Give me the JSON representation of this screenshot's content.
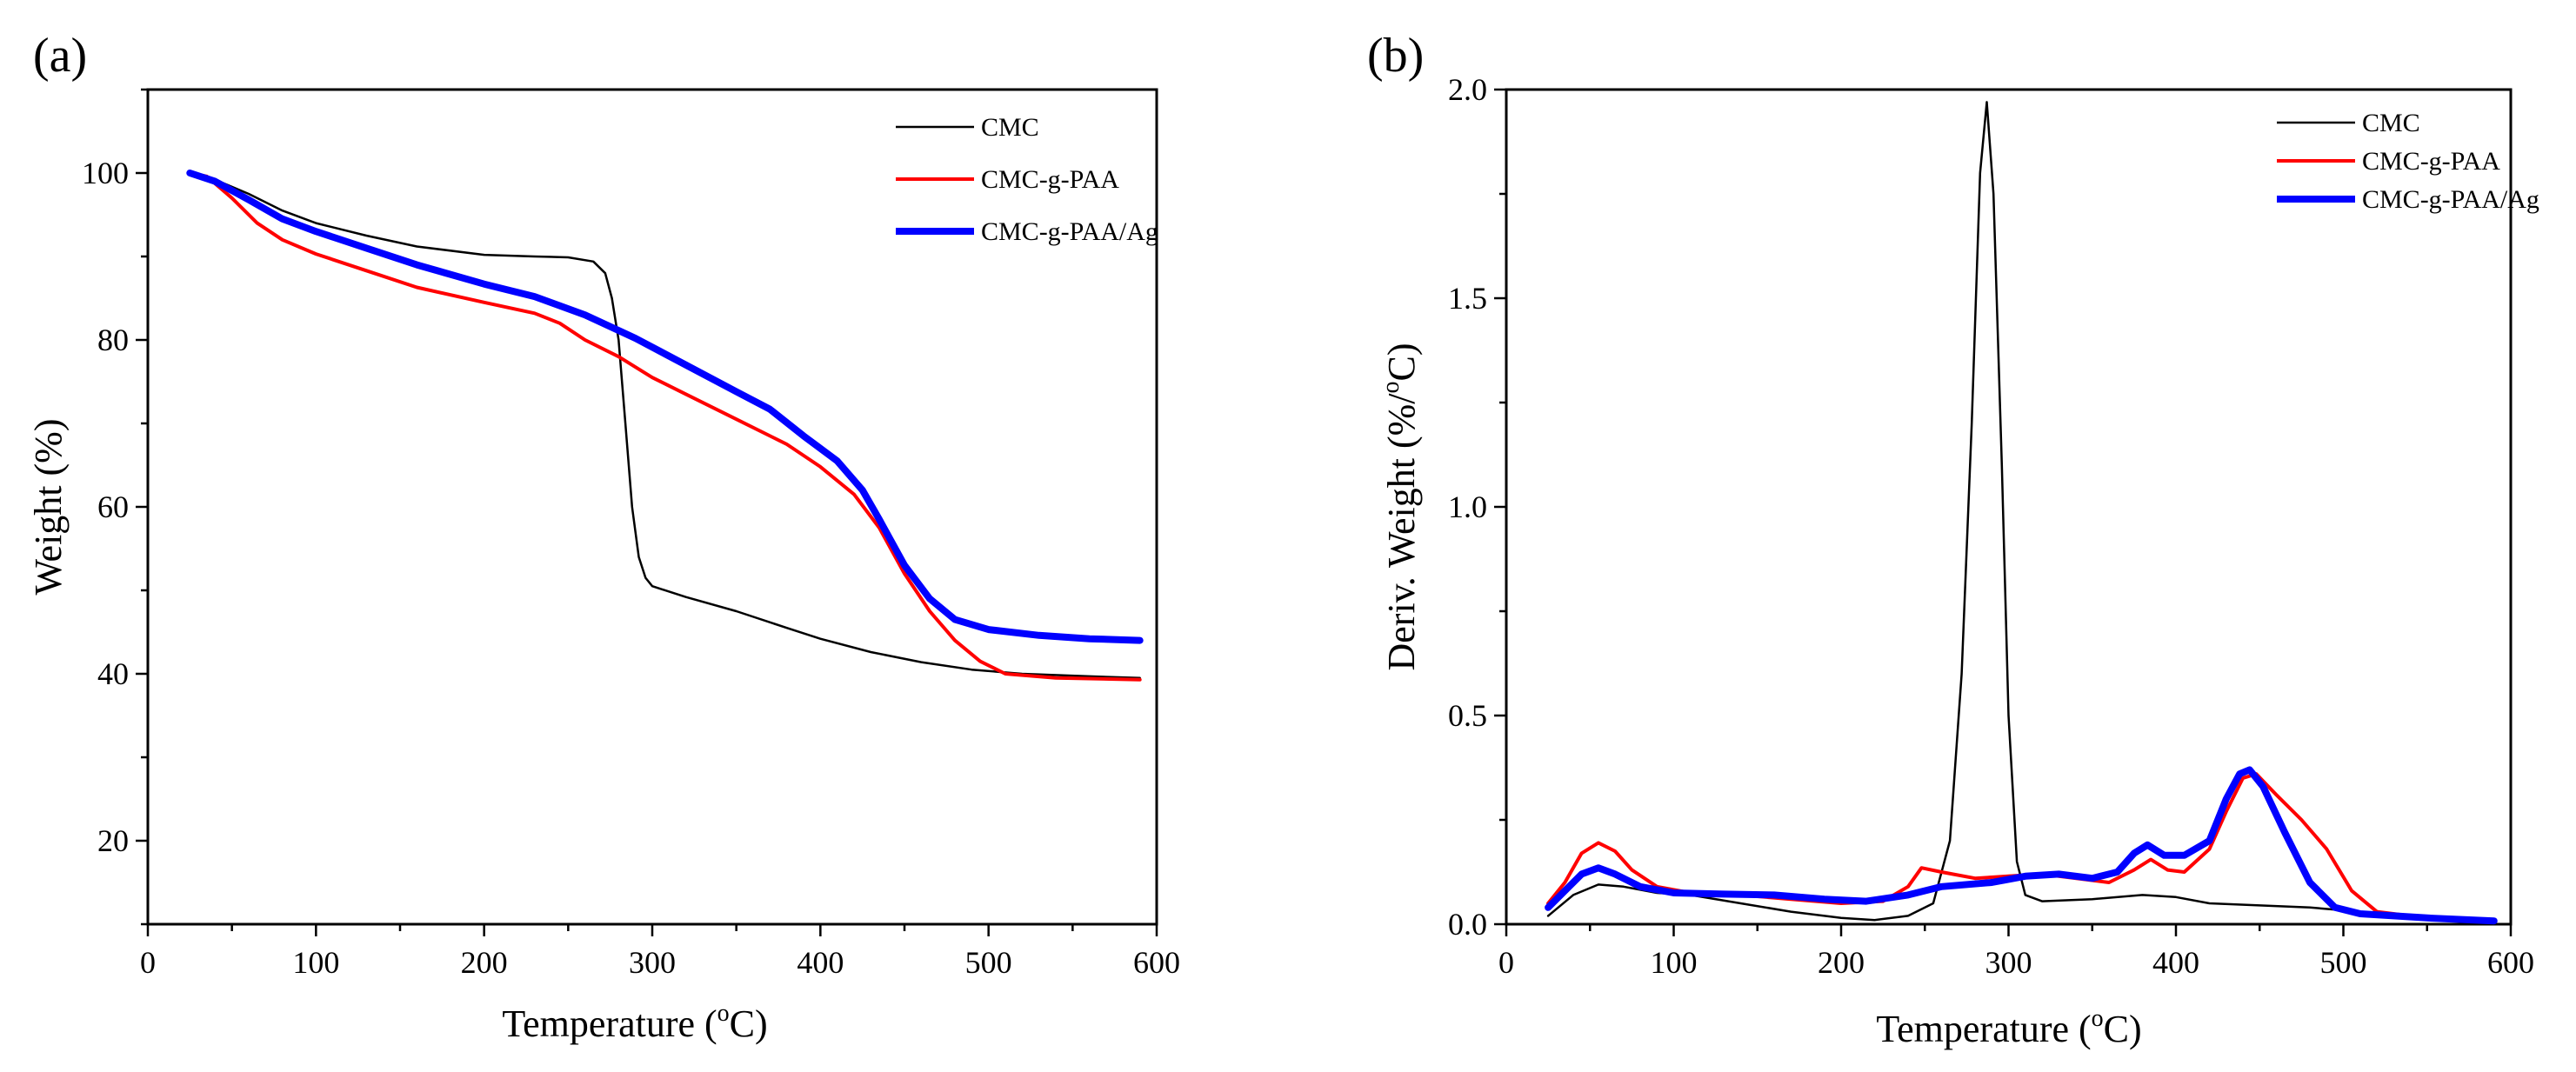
{
  "chart_data": [
    {
      "type": "line",
      "panel_label": "(a)",
      "xlabel": "Temperature (",
      "xlabel_sup": "o",
      "xlabel_end": "C)",
      "ylabel": "Weight (%)",
      "xlim": [
        0,
        600
      ],
      "ylim": [
        10,
        110
      ],
      "x_ticks": [
        0,
        100,
        200,
        300,
        400,
        500,
        600
      ],
      "y_ticks": [
        20,
        40,
        60,
        80,
        100
      ],
      "legend_position": "top-right",
      "series": [
        {
          "name": "CMC",
          "color": "#000000",
          "width": 2.5,
          "points": [
            [
              25,
              100
            ],
            [
              40,
              99.2
            ],
            [
              60,
              97.5
            ],
            [
              80,
              95.5
            ],
            [
              100,
              94
            ],
            [
              130,
              92.5
            ],
            [
              160,
              91.2
            ],
            [
              200,
              90.2
            ],
            [
              230,
              90.0
            ],
            [
              250,
              89.9
            ],
            [
              265,
              89.4
            ],
            [
              272,
              88
            ],
            [
              276,
              85
            ],
            [
              280,
              80
            ],
            [
              284,
              70
            ],
            [
              288,
              60
            ],
            [
              292,
              54
            ],
            [
              296,
              51.5
            ],
            [
              300,
              50.5
            ],
            [
              320,
              49.2
            ],
            [
              350,
              47.5
            ],
            [
              380,
              45.5
            ],
            [
              400,
              44.2
            ],
            [
              430,
              42.6
            ],
            [
              460,
              41.4
            ],
            [
              490,
              40.5
            ],
            [
              520,
              40
            ],
            [
              560,
              39.7
            ],
            [
              590,
              39.5
            ]
          ]
        },
        {
          "name": "CMC-g-PAA",
          "color": "#ff0000",
          "width": 4,
          "points": [
            [
              25,
              100
            ],
            [
              35,
              99.6
            ],
            [
              50,
              97
            ],
            [
              65,
              94
            ],
            [
              80,
              92
            ],
            [
              100,
              90.3
            ],
            [
              130,
              88.3
            ],
            [
              160,
              86.3
            ],
            [
              200,
              84.5
            ],
            [
              230,
              83.2
            ],
            [
              245,
              82
            ],
            [
              260,
              80
            ],
            [
              280,
              78
            ],
            [
              300,
              75.5
            ],
            [
              320,
              73.5
            ],
            [
              350,
              70.5
            ],
            [
              380,
              67.5
            ],
            [
              400,
              64.8
            ],
            [
              420,
              61.5
            ],
            [
              435,
              57.5
            ],
            [
              450,
              52
            ],
            [
              465,
              47.5
            ],
            [
              480,
              44
            ],
            [
              495,
              41.5
            ],
            [
              510,
              40
            ],
            [
              540,
              39.5
            ],
            [
              590,
              39.3
            ]
          ]
        },
        {
          "name": "CMC-g-PAA/Ag",
          "color": "#0000ff",
          "width": 8,
          "points": [
            [
              25,
              100
            ],
            [
              40,
              99
            ],
            [
              60,
              96.8
            ],
            [
              80,
              94.5
            ],
            [
              100,
              93
            ],
            [
              130,
              91
            ],
            [
              160,
              89
            ],
            [
              200,
              86.7
            ],
            [
              230,
              85.2
            ],
            [
              260,
              83
            ],
            [
              290,
              80.2
            ],
            [
              320,
              77
            ],
            [
              350,
              73.8
            ],
            [
              370,
              71.7
            ],
            [
              390,
              68.5
            ],
            [
              410,
              65.5
            ],
            [
              425,
              62
            ],
            [
              435,
              58.5
            ],
            [
              450,
              53
            ],
            [
              465,
              49
            ],
            [
              480,
              46.5
            ],
            [
              500,
              45.3
            ],
            [
              530,
              44.6
            ],
            [
              560,
              44.2
            ],
            [
              590,
              44
            ]
          ]
        }
      ]
    },
    {
      "type": "line",
      "panel_label": "(b)",
      "xlabel": "Temperature (",
      "xlabel_sup": "o",
      "xlabel_end": "C)",
      "ylabel": "Deriv. Weight (%/",
      "ylabel_sup": "o",
      "ylabel_end": "C)",
      "xlim": [
        0,
        600
      ],
      "ylim": [
        0,
        2.0
      ],
      "x_ticks": [
        0,
        100,
        200,
        300,
        400,
        500,
        600
      ],
      "y_ticks": [
        "0.0",
        "0.5",
        "1.0",
        "1.5",
        "2.0"
      ],
      "legend_position": "top-right",
      "series": [
        {
          "name": "CMC",
          "color": "#000000",
          "width": 2.5,
          "points": [
            [
              25,
              0.02
            ],
            [
              40,
              0.07
            ],
            [
              55,
              0.095
            ],
            [
              70,
              0.09
            ],
            [
              90,
              0.075
            ],
            [
              110,
              0.07
            ],
            [
              140,
              0.05
            ],
            [
              170,
              0.03
            ],
            [
              200,
              0.015
            ],
            [
              220,
              0.01
            ],
            [
              240,
              0.02
            ],
            [
              255,
              0.05
            ],
            [
              265,
              0.2
            ],
            [
              272,
              0.6
            ],
            [
              278,
              1.2
            ],
            [
              283,
              1.8
            ],
            [
              287,
              1.97
            ],
            [
              291,
              1.75
            ],
            [
              296,
              1.1
            ],
            [
              300,
              0.5
            ],
            [
              305,
              0.15
            ],
            [
              310,
              0.07
            ],
            [
              320,
              0.055
            ],
            [
              350,
              0.06
            ],
            [
              380,
              0.07
            ],
            [
              400,
              0.065
            ],
            [
              420,
              0.05
            ],
            [
              450,
              0.045
            ],
            [
              480,
              0.04
            ],
            [
              510,
              0.03
            ],
            [
              550,
              0.015
            ],
            [
              590,
              0.008
            ]
          ]
        },
        {
          "name": "CMC-g-PAA",
          "color": "#ff0000",
          "width": 4,
          "points": [
            [
              25,
              0.05
            ],
            [
              35,
              0.1
            ],
            [
              45,
              0.17
            ],
            [
              55,
              0.195
            ],
            [
              65,
              0.175
            ],
            [
              75,
              0.13
            ],
            [
              90,
              0.09
            ],
            [
              110,
              0.075
            ],
            [
              140,
              0.07
            ],
            [
              170,
              0.06
            ],
            [
              200,
              0.05
            ],
            [
              225,
              0.055
            ],
            [
              240,
              0.09
            ],
            [
              248,
              0.135
            ],
            [
              260,
              0.125
            ],
            [
              280,
              0.11
            ],
            [
              300,
              0.115
            ],
            [
              320,
              0.12
            ],
            [
              340,
              0.11
            ],
            [
              360,
              0.1
            ],
            [
              375,
              0.13
            ],
            [
              385,
              0.155
            ],
            [
              395,
              0.13
            ],
            [
              405,
              0.125
            ],
            [
              420,
              0.18
            ],
            [
              430,
              0.27
            ],
            [
              440,
              0.35
            ],
            [
              448,
              0.36
            ],
            [
              460,
              0.31
            ],
            [
              475,
              0.25
            ],
            [
              490,
              0.18
            ],
            [
              505,
              0.08
            ],
            [
              520,
              0.03
            ],
            [
              550,
              0.015
            ],
            [
              590,
              0.008
            ]
          ]
        },
        {
          "name": "CMC-g-PAA/Ag",
          "color": "#0000ff",
          "width": 8,
          "points": [
            [
              25,
              0.04
            ],
            [
              35,
              0.08
            ],
            [
              45,
              0.12
            ],
            [
              55,
              0.135
            ],
            [
              65,
              0.12
            ],
            [
              80,
              0.09
            ],
            [
              100,
              0.075
            ],
            [
              130,
              0.072
            ],
            [
              160,
              0.07
            ],
            [
              190,
              0.06
            ],
            [
              215,
              0.055
            ],
            [
              240,
              0.07
            ],
            [
              260,
              0.09
            ],
            [
              290,
              0.1
            ],
            [
              310,
              0.115
            ],
            [
              330,
              0.12
            ],
            [
              350,
              0.11
            ],
            [
              365,
              0.125
            ],
            [
              375,
              0.17
            ],
            [
              383,
              0.19
            ],
            [
              393,
              0.165
            ],
            [
              405,
              0.165
            ],
            [
              420,
              0.2
            ],
            [
              430,
              0.3
            ],
            [
              438,
              0.36
            ],
            [
              444,
              0.37
            ],
            [
              452,
              0.33
            ],
            [
              465,
              0.22
            ],
            [
              480,
              0.1
            ],
            [
              495,
              0.04
            ],
            [
              510,
              0.025
            ],
            [
              550,
              0.015
            ],
            [
              590,
              0.008
            ]
          ]
        }
      ]
    }
  ]
}
